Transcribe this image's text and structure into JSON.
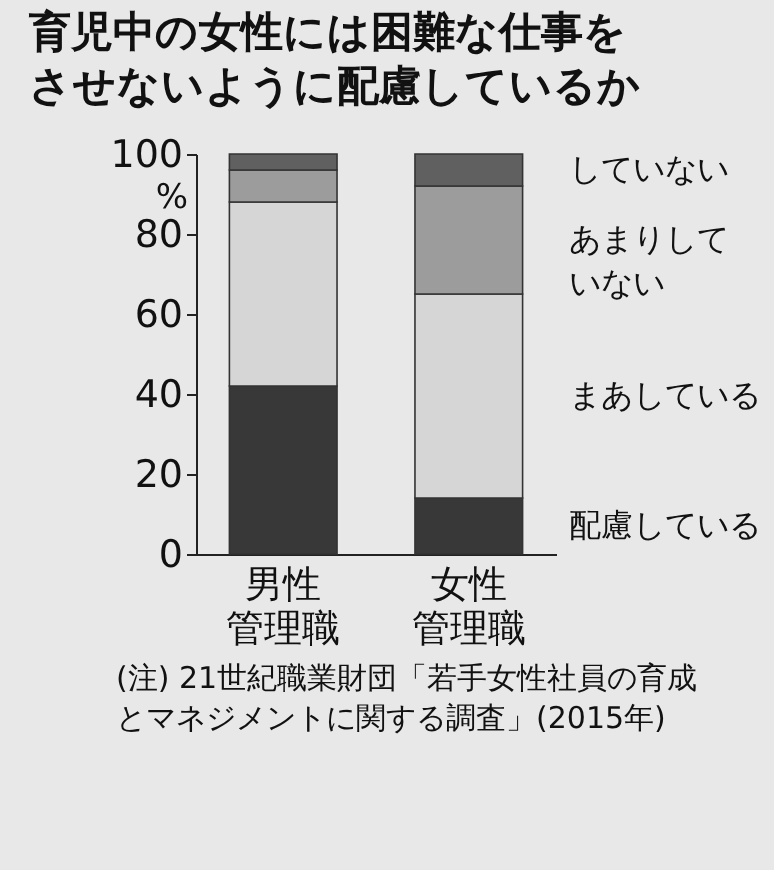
{
  "chart_data": {
    "type": "bar",
    "title": "育児中の女性には困難な仕事をさせないように配慮しているか",
    "ylabel": "%",
    "categories": [
      "男性管理職",
      "女性管理職"
    ],
    "stacked": true,
    "ylim": [
      0,
      100
    ],
    "yticks": [
      0,
      20,
      40,
      60,
      80,
      100
    ],
    "grid": false,
    "series": [
      {
        "name": "配慮している",
        "color": "#383838",
        "values": [
          42,
          14
        ]
      },
      {
        "name": "まあしている",
        "color": "#d6d6d6",
        "values": [
          46,
          51
        ]
      },
      {
        "name": "あまりしていない",
        "color": "#9c9c9c",
        "values": [
          8,
          27
        ]
      },
      {
        "name": "していない",
        "color": "#606060",
        "values": [
          4,
          8
        ]
      }
    ],
    "annotations": [
      "(注) 21世紀職業財団「若手女性社員の育成とマネジメントに関する調査」(2015年)"
    ]
  }
}
